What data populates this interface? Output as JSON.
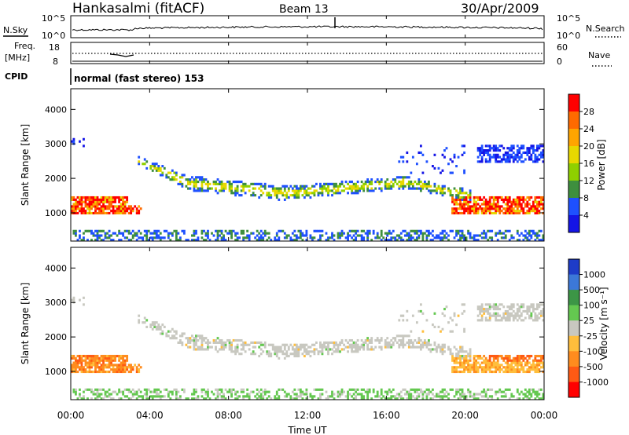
{
  "header": {
    "station": "Hankasalmi (fitACF)",
    "beam": "Beam 13",
    "date": "30/Apr/2009"
  },
  "noise_panel": {
    "left_label": "N.Sky",
    "right_label": "N.Search",
    "left_ticks": [
      "10^5",
      "10^0"
    ],
    "right_ticks": [
      "10^5",
      "10^0"
    ]
  },
  "freq_panel": {
    "left_label_line1": "Freq.",
    "left_label_line2": "[MHz]",
    "left_ticks": [
      "18",
      "8"
    ],
    "right_label": "Nave",
    "right_ticks": [
      "60",
      "0"
    ]
  },
  "cpid": {
    "label": "CPID",
    "value": "normal (fast stereo) 153"
  },
  "chart_data": [
    {
      "type": "heatmap",
      "title": "",
      "ylabel": "Slant Range [km]",
      "yticks": [
        "4000",
        "3000",
        "2000",
        "1000"
      ],
      "ylim": [
        180,
        4600
      ],
      "colorbar_label": "Power [dB]",
      "colorbar_ticks": [
        "28",
        "24",
        "20",
        "16",
        "12",
        "8",
        "4"
      ],
      "colorbar_colors": [
        "#ff0000",
        "#ff6a00",
        "#ffa500",
        "#e8d800",
        "#8fd000",
        "#3e8f3e",
        "#1e50ff",
        "#1414e6"
      ]
    },
    {
      "type": "heatmap",
      "title": "",
      "ylabel": "Slant Range [km]",
      "yticks": [
        "4000",
        "3000",
        "2000",
        "1000"
      ],
      "ylim": [
        180,
        4600
      ],
      "colorbar_label": "Velocity [m s⁻¹]",
      "colorbar_ticks": [
        "1000",
        "500",
        "100",
        "25",
        "-25",
        "-100",
        "-500",
        "-1000"
      ],
      "colorbar_colors": [
        "#1e3cc8",
        "#3c78d8",
        "#3c9646",
        "#64c850",
        "#c8c8c0",
        "#ffbe3c",
        "#ff8c1e",
        "#ff5a14",
        "#ff0000"
      ]
    }
  ],
  "x_axis": {
    "ticks": [
      "00:00",
      "04:00",
      "08:00",
      "12:00",
      "16:00",
      "20:00",
      "00:00"
    ],
    "label": "Time UT"
  }
}
